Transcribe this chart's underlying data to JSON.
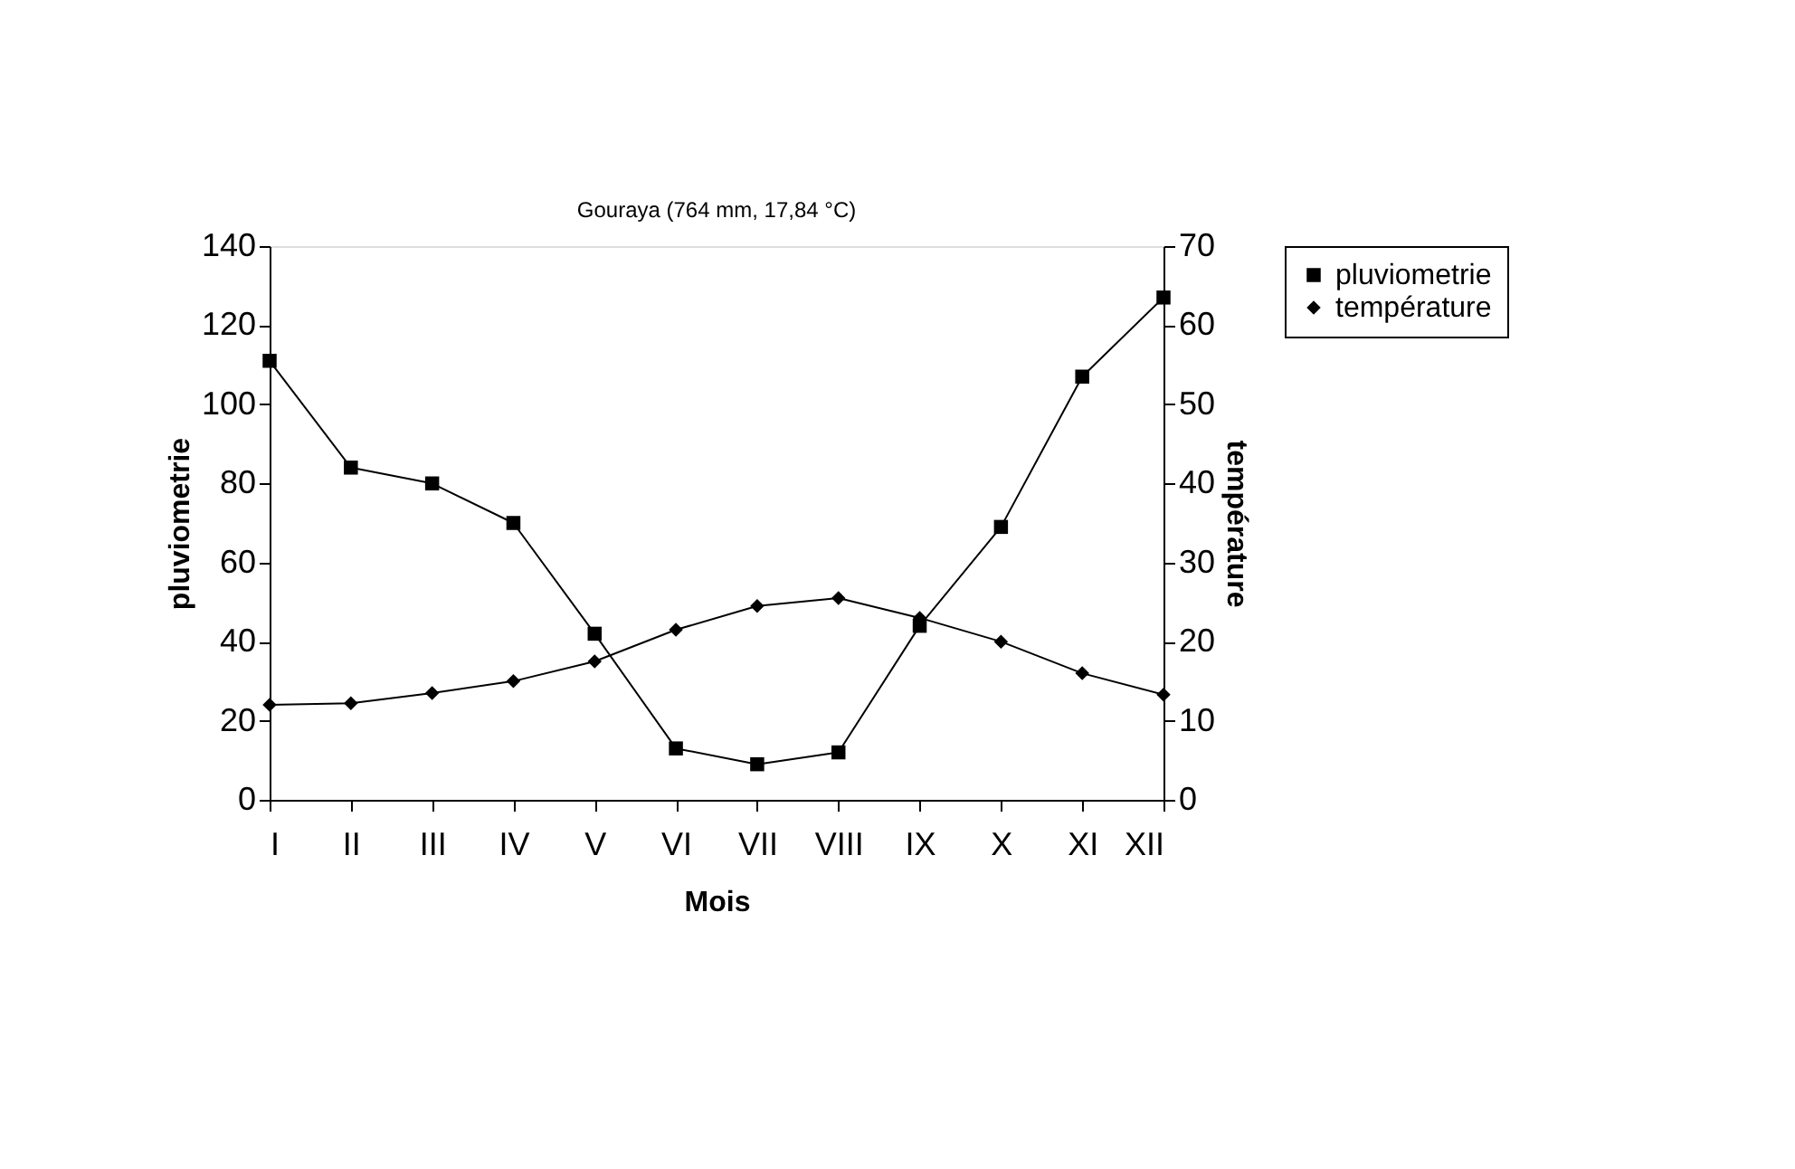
{
  "chart_data": {
    "type": "line",
    "title": "Gouraya (764 mm, 17,84 °C)",
    "xlabel": "Mois",
    "ylabel": "pluviometrie",
    "y2label": "température",
    "categories": [
      "I",
      "II",
      "III",
      "IV",
      "V",
      "VI",
      "VII",
      "VIII",
      "IX",
      "X",
      "XI",
      "XII"
    ],
    "series": [
      {
        "name": "pluviometrie",
        "color": "#000000",
        "marker": "square",
        "values": [
          111,
          84,
          80,
          70,
          42,
          13,
          9,
          12,
          44,
          69,
          107,
          127
        ]
      },
      {
        "name": "température",
        "color": "#000000",
        "marker": "diamond",
        "axis": "y2",
        "values": [
          12,
          12.2,
          13.5,
          15,
          17.5,
          21.5,
          24.5,
          25.5,
          23,
          20,
          16,
          13.3
        ]
      }
    ],
    "ylim": [
      0,
      140
    ],
    "yticks": [
      0,
      20,
      40,
      60,
      80,
      100,
      120,
      140
    ],
    "y2lim": [
      0,
      70
    ],
    "y2ticks": [
      0,
      10,
      20,
      30,
      40,
      50,
      60,
      70
    ],
    "legend": "right",
    "grid": false,
    "line_style": "solid"
  }
}
